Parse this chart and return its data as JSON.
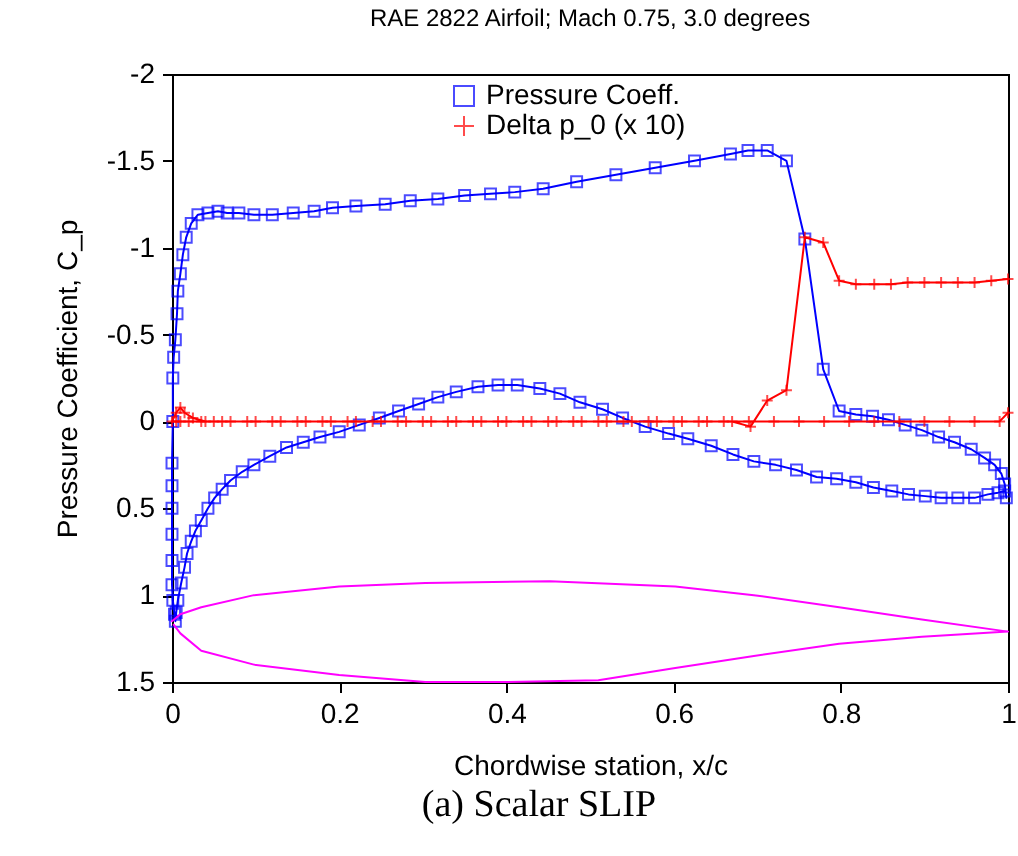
{
  "chart_data": {
    "type": "line",
    "title": "RAE 2822 Airfoil; Mach 0.75, 3.0 degrees",
    "xlabel": "Chordwise station, x/c",
    "ylabel": "Pressure Coefficient, C_p",
    "xlim": [
      0,
      1
    ],
    "ylim": [
      1.5,
      -2
    ],
    "xticks": [
      0,
      0.2,
      0.4,
      0.6,
      0.8,
      1
    ],
    "yticks": [
      -2,
      -1.5,
      -1,
      -0.5,
      0,
      0.5,
      1,
      1.5
    ],
    "legend": "top",
    "annotations": [
      "(a) Scalar SLIP"
    ],
    "series": [
      {
        "name": "Pressure  Coeff.",
        "color": "#0000ff",
        "marker": "square",
        "x": [
          0.996,
          0.988,
          0.976,
          0.96,
          0.94,
          0.92,
          0.901,
          0.881,
          0.861,
          0.839,
          0.818,
          0.795,
          0.771,
          0.747,
          0.722,
          0.696,
          0.671,
          0.645,
          0.617,
          0.594,
          0.566,
          0.539,
          0.515,
          0.488,
          0.464,
          0.44,
          0.413,
          0.39,
          0.366,
          0.34,
          0.318,
          0.295,
          0.271,
          0.248,
          0.224,
          0.2,
          0.177,
          0.157,
          0.137,
          0.117,
          0.098,
          0.084,
          0.07,
          0.06,
          0.051,
          0.043,
          0.035,
          0.028,
          0.023,
          0.018,
          0.015,
          0.011,
          0.007,
          0.005,
          0.004,
          0.003,
          0.001,
          0,
          0,
          0,
          0,
          0,
          0,
          0.001,
          0.001,
          0.002,
          0.004,
          0.006,
          0.007,
          0.01,
          0.013,
          0.017,
          0.023,
          0.031,
          0.043,
          0.055,
          0.066,
          0.08,
          0.098,
          0.12,
          0.145,
          0.17,
          0.192,
          0.22,
          0.255,
          0.285,
          0.318,
          0.35,
          0.381,
          0.41,
          0.444,
          0.484,
          0.531,
          0.578,
          0.625,
          0.668,
          0.689,
          0.712,
          0.735,
          0.757,
          0.779,
          0.798,
          0.818,
          0.838,
          0.857,
          0.877,
          0.897,
          0.917,
          0.936,
          0.956,
          0.972,
          0.984,
          0.992,
          0.996,
          0.998
        ],
        "values": [
          0.4,
          0.41,
          0.42,
          0.44,
          0.44,
          0.44,
          0.43,
          0.42,
          0.4,
          0.38,
          0.35,
          0.33,
          0.32,
          0.28,
          0.25,
          0.23,
          0.19,
          0.14,
          0.1,
          0.07,
          0.03,
          -0.02,
          -0.07,
          -0.11,
          -0.16,
          -0.19,
          -0.21,
          -0.21,
          -0.2,
          -0.17,
          -0.14,
          -0.1,
          -0.06,
          -0.02,
          0.02,
          0.06,
          0.09,
          0.12,
          0.15,
          0.2,
          0.25,
          0.29,
          0.34,
          0.39,
          0.44,
          0.5,
          0.57,
          0.63,
          0.69,
          0.76,
          0.84,
          0.93,
          1.03,
          1.1,
          1.15,
          1.11,
          1.03,
          0.94,
          0.8,
          0.65,
          0.5,
          0.37,
          0.24,
          0,
          -0.25,
          -0.37,
          -0.47,
          -0.62,
          -0.75,
          -0.85,
          -0.96,
          -1.06,
          -1.14,
          -1.19,
          -1.2,
          -1.21,
          -1.2,
          -1.2,
          -1.19,
          -1.19,
          -1.2,
          -1.21,
          -1.23,
          -1.24,
          -1.25,
          -1.27,
          -1.28,
          -1.3,
          -1.31,
          -1.32,
          -1.34,
          -1.38,
          -1.42,
          -1.46,
          -1.5,
          -1.54,
          -1.56,
          -1.56,
          -1.5,
          -1.05,
          -0.3,
          -0.06,
          -0.04,
          -0.03,
          -0.01,
          0.02,
          0.05,
          0.09,
          0.12,
          0.16,
          0.21,
          0.25,
          0.3,
          0.36,
          0.44
        ]
      },
      {
        "name": "Delta p_0 (x 10)",
        "color": "#ff0000",
        "marker": "cross",
        "x": [
          1,
          0.99,
          0.96,
          0.93,
          0.9,
          0.87,
          0.84,
          0.81,
          0.78,
          0.75,
          0.72,
          0.69,
          0.66,
          0.63,
          0.6,
          0.57,
          0.54,
          0.51,
          0.48,
          0.45,
          0.42,
          0.39,
          0.36,
          0.33,
          0.3,
          0.27,
          0.24,
          0.21,
          0.18,
          0.15,
          0.12,
          0.09,
          0.06,
          0.04,
          0.025,
          0.015,
          0.01,
          0.005,
          0,
          0.005,
          0.01,
          0.02,
          0.035,
          0.05,
          0.07,
          0.1,
          0.13,
          0.16,
          0.19,
          0.22,
          0.25,
          0.28,
          0.31,
          0.34,
          0.37,
          0.4,
          0.43,
          0.46,
          0.49,
          0.52,
          0.55,
          0.58,
          0.61,
          0.64,
          0.67,
          0.692,
          0.712,
          0.735,
          0.757,
          0.779,
          0.798,
          0.818,
          0.84,
          0.86,
          0.88,
          0.9,
          0.92,
          0.94,
          0.96,
          0.98,
          1
        ],
        "values": [
          -0.05,
          0,
          0,
          0,
          0,
          0,
          0,
          0,
          0,
          0,
          0,
          0,
          0,
          0,
          0,
          0,
          0,
          0,
          0,
          0,
          0,
          0,
          0,
          0,
          0,
          0,
          0,
          0,
          0,
          0,
          0,
          0,
          0,
          0,
          -0.02,
          -0.05,
          -0.08,
          -0.05,
          0,
          0,
          0,
          0,
          0,
          0,
          0,
          0,
          0,
          0,
          0,
          0,
          0,
          0,
          0,
          0,
          0,
          0,
          0,
          0,
          0,
          0,
          0,
          0,
          0,
          0,
          0,
          0.03,
          -0.12,
          -0.18,
          -1.06,
          -1.03,
          -0.81,
          -0.79,
          -0.79,
          -0.79,
          -0.8,
          -0.8,
          -0.8,
          -0.8,
          -0.8,
          -0.81,
          -0.82
        ]
      },
      {
        "color": "#ff00ff",
        "marker": "none",
        "x": [
          0,
          0.01,
          0.035,
          0.098,
          0.2,
          0.303,
          0.452,
          0.602,
          0.696,
          0.798,
          0.897,
          1,
          0.897,
          0.798,
          0.696,
          0.602,
          0.51,
          0.4,
          0.303,
          0.2,
          0.098,
          0.035,
          0.01,
          0.002
        ],
        "values": [
          1.15,
          1.11,
          1.07,
          1.0,
          0.95,
          0.93,
          0.92,
          0.95,
          1.0,
          1.07,
          1.14,
          1.21,
          1.24,
          1.28,
          1.35,
          1.42,
          1.49,
          1.5,
          1.5,
          1.46,
          1.4,
          1.32,
          1.22,
          1.17
        ]
      }
    ]
  }
}
